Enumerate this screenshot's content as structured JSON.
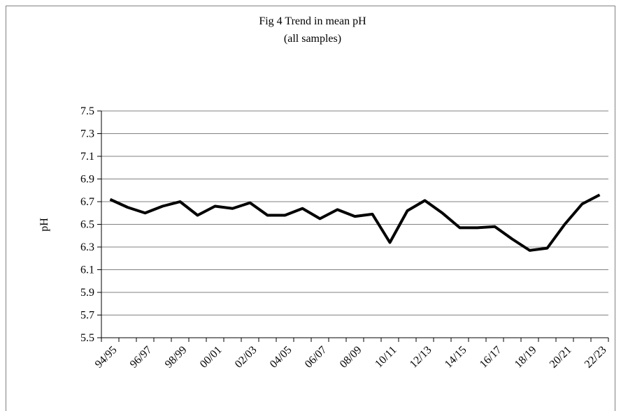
{
  "chart_data": {
    "type": "line",
    "title": "Fig 4 Trend in mean pH",
    "subtitle": "(all samples)",
    "y_label": "pH",
    "categories": [
      "94/95",
      null,
      "96/97",
      null,
      "98/99",
      null,
      "00/01",
      null,
      "02/03",
      null,
      "04/05",
      null,
      "06/07",
      null,
      "08/09",
      null,
      "10/11",
      null,
      "12/13",
      null,
      "14/15",
      null,
      "16/17",
      null,
      "18/19",
      null,
      "20/21",
      null,
      "22/23"
    ],
    "series": [
      {
        "name": "Mean pH",
        "color": "#000000",
        "values": [
          6.72,
          6.65,
          6.6,
          6.66,
          6.7,
          6.58,
          6.66,
          6.64,
          6.69,
          6.58,
          6.58,
          6.64,
          6.55,
          6.63,
          6.57,
          6.59,
          6.34,
          6.62,
          6.71,
          6.6,
          6.47,
          6.47,
          6.48,
          6.37,
          6.27,
          6.29,
          6.5,
          6.68,
          6.76
        ]
      }
    ],
    "ylim": [
      5.5,
      7.5
    ],
    "yticks": [
      5.5,
      5.7,
      5.9,
      6.1,
      6.3,
      6.5,
      6.7,
      6.9,
      7.1,
      7.3,
      7.5
    ],
    "grid": true
  }
}
